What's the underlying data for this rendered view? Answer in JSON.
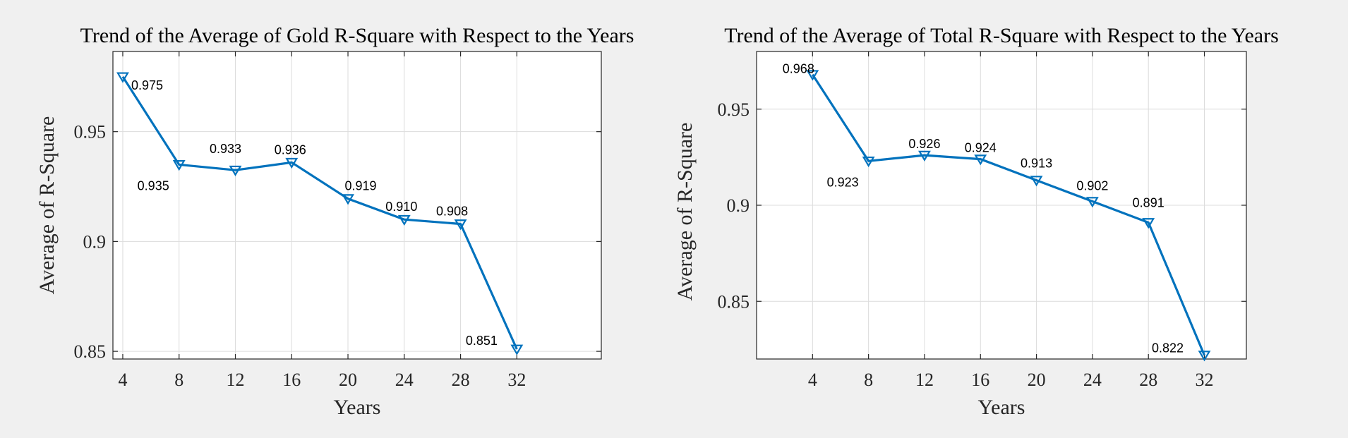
{
  "chart_data": [
    {
      "type": "line",
      "title": "Trend of the Average of Gold R-Square with Respect to the Years",
      "xlabel": "Years",
      "ylabel": "Average of R-Square",
      "x": [
        4,
        8,
        12,
        16,
        20,
        24,
        28,
        32
      ],
      "series": [
        {
          "values": [
            0.975,
            0.935,
            0.9325,
            0.936,
            0.9195,
            0.91,
            0.908,
            0.851
          ]
        }
      ],
      "data_labels": [
        "0.975",
        "0.935",
        "0.933",
        "0.936",
        "0.919",
        "0.910",
        "0.908",
        "0.851"
      ],
      "xlim": [
        3.3,
        38
      ],
      "ylim": [
        0.8465,
        0.9865
      ],
      "xticks": [
        4,
        8,
        12,
        16,
        20,
        24,
        28,
        32
      ],
      "xtick_labels": [
        "4",
        "8",
        "12",
        "16",
        "20",
        "24",
        "28",
        "32"
      ],
      "yticks": [
        0.85,
        0.9,
        0.95
      ],
      "ytick_labels": [
        "0.85",
        "0.9",
        "0.95"
      ],
      "grid": true,
      "marker": "downward-triangle",
      "color": "#0072BD"
    },
    {
      "type": "line",
      "title": "Trend of the Average of Total R-Square with Respect to the Years",
      "xlabel": "Years",
      "ylabel": "Average of R-Square",
      "x": [
        4,
        8,
        12,
        16,
        20,
        24,
        28,
        32
      ],
      "series": [
        {
          "values": [
            0.968,
            0.923,
            0.926,
            0.924,
            0.913,
            0.902,
            0.891,
            0.822
          ]
        }
      ],
      "data_labels": [
        "0.968",
        "0.923",
        "0.926",
        "0.924",
        "0.913",
        "0.902",
        "0.891",
        "0.822"
      ],
      "xlim": [
        0,
        35
      ],
      "ylim": [
        0.82,
        0.98
      ],
      "xticks": [
        4,
        8,
        12,
        16,
        20,
        24,
        28,
        32
      ],
      "xtick_labels": [
        "4",
        "8",
        "12",
        "16",
        "20",
        "24",
        "28",
        "32"
      ],
      "yticks": [
        0.85,
        0.9,
        0.95
      ],
      "ytick_labels": [
        "0.85",
        "0.9",
        "0.95"
      ],
      "grid": true,
      "marker": "downward-triangle",
      "color": "#0072BD"
    }
  ]
}
